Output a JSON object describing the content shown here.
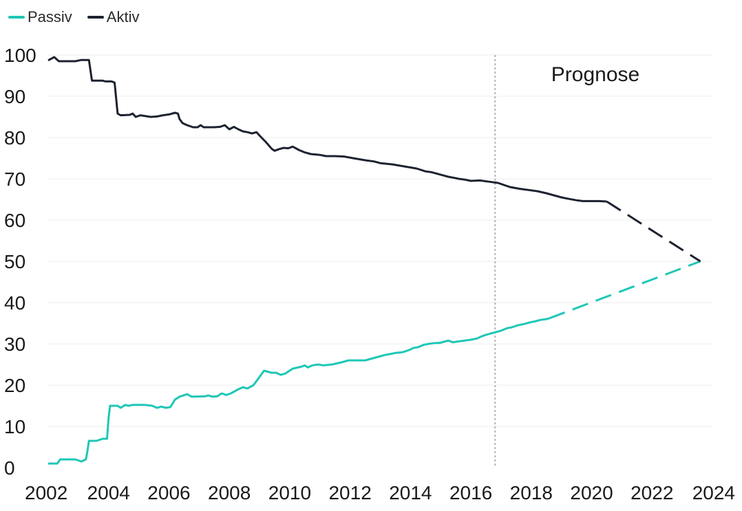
{
  "chart_data": {
    "type": "line",
    "title": "",
    "xlabel": "",
    "ylabel": "",
    "xlim": [
      2002,
      2024
    ],
    "ylim": [
      0,
      100
    ],
    "x_ticks": [
      "2002",
      "2004",
      "2006",
      "2008",
      "2010",
      "2012",
      "2014",
      "2016",
      "2018",
      "2020",
      "2022",
      "2024"
    ],
    "y_ticks": [
      "0",
      "10",
      "20",
      "30",
      "40",
      "50",
      "60",
      "70",
      "80",
      "90",
      "100"
    ],
    "grid": "horizontal",
    "legend_position": "top-left",
    "forecast_start": 2016.8,
    "annotation": "Prognose",
    "series": [
      {
        "name": "Passiv",
        "color": "#1fc7b6",
        "points": [
          [
            2002.0,
            1
          ],
          [
            2002.3,
            1
          ],
          [
            2002.4,
            2
          ],
          [
            2002.9,
            2
          ],
          [
            2003.1,
            1.5
          ],
          [
            2003.25,
            2
          ],
          [
            2003.3,
            4
          ],
          [
            2003.35,
            6.5
          ],
          [
            2003.6,
            6.5
          ],
          [
            2003.8,
            7
          ],
          [
            2003.95,
            7
          ],
          [
            2004.0,
            12
          ],
          [
            2004.05,
            15
          ],
          [
            2004.3,
            15
          ],
          [
            2004.4,
            14.5
          ],
          [
            2004.55,
            15.2
          ],
          [
            2004.65,
            15
          ],
          [
            2004.8,
            15.2
          ],
          [
            2005.2,
            15.2
          ],
          [
            2005.45,
            15
          ],
          [
            2005.6,
            14.5
          ],
          [
            2005.75,
            14.8
          ],
          [
            2005.9,
            14.5
          ],
          [
            2006.05,
            14.7
          ],
          [
            2006.2,
            16.5
          ],
          [
            2006.35,
            17.2
          ],
          [
            2006.6,
            17.8
          ],
          [
            2006.75,
            17.2
          ],
          [
            2007.2,
            17.3
          ],
          [
            2007.3,
            17.5
          ],
          [
            2007.45,
            17.2
          ],
          [
            2007.6,
            17.3
          ],
          [
            2007.75,
            18
          ],
          [
            2007.9,
            17.6
          ],
          [
            2008.05,
            18
          ],
          [
            2008.3,
            19
          ],
          [
            2008.45,
            19.5
          ],
          [
            2008.6,
            19.2
          ],
          [
            2008.8,
            20
          ],
          [
            2008.95,
            21.5
          ],
          [
            2009.15,
            23.5
          ],
          [
            2009.4,
            23
          ],
          [
            2009.55,
            23
          ],
          [
            2009.7,
            22.5
          ],
          [
            2009.85,
            22.8
          ],
          [
            2010.1,
            24
          ],
          [
            2010.4,
            24.5
          ],
          [
            2010.5,
            24.8
          ],
          [
            2010.6,
            24.3
          ],
          [
            2010.75,
            24.8
          ],
          [
            2010.95,
            25
          ],
          [
            2011.1,
            24.8
          ],
          [
            2011.4,
            25
          ],
          [
            2011.7,
            25.5
          ],
          [
            2011.95,
            26
          ],
          [
            2012.5,
            26
          ],
          [
            2013.0,
            27
          ],
          [
            2013.15,
            27.3
          ],
          [
            2013.3,
            27.5
          ],
          [
            2013.5,
            27.8
          ],
          [
            2013.75,
            28
          ],
          [
            2013.95,
            28.5
          ],
          [
            2014.1,
            29
          ],
          [
            2014.25,
            29.2
          ],
          [
            2014.45,
            29.8
          ],
          [
            2014.6,
            30
          ],
          [
            2014.8,
            30.2
          ],
          [
            2014.95,
            30.2
          ],
          [
            2015.1,
            30.5
          ],
          [
            2015.25,
            30.8
          ],
          [
            2015.4,
            30.4
          ],
          [
            2015.6,
            30.6
          ],
          [
            2015.8,
            30.8
          ],
          [
            2016.0,
            31
          ],
          [
            2016.2,
            31.3
          ],
          [
            2016.35,
            31.8
          ],
          [
            2016.5,
            32.2
          ],
          [
            2016.8,
            32.8
          ],
          [
            2017.0,
            33.2
          ],
          [
            2017.2,
            33.8
          ],
          [
            2017.35,
            34
          ],
          [
            2017.55,
            34.5
          ],
          [
            2017.75,
            34.8
          ],
          [
            2017.95,
            35.2
          ],
          [
            2018.15,
            35.5
          ],
          [
            2018.3,
            35.8
          ],
          [
            2018.5,
            36
          ],
          [
            2018.6,
            36.2
          ]
        ],
        "forecast": [
          [
            2018.6,
            36.2
          ],
          [
            2023.6,
            50
          ]
        ]
      },
      {
        "name": "Aktiv",
        "color": "#1d2230",
        "points": [
          [
            2002.0,
            98.7
          ],
          [
            2002.2,
            99.5
          ],
          [
            2002.35,
            98.5
          ],
          [
            2002.9,
            98.5
          ],
          [
            2003.1,
            98.8
          ],
          [
            2003.35,
            98.8
          ],
          [
            2003.45,
            93.8
          ],
          [
            2003.8,
            93.8
          ],
          [
            2003.9,
            93.6
          ],
          [
            2004.1,
            93.6
          ],
          [
            2004.2,
            93.3
          ],
          [
            2004.3,
            85.8
          ],
          [
            2004.4,
            85.4
          ],
          [
            2004.7,
            85.5
          ],
          [
            2004.8,
            85.8
          ],
          [
            2004.9,
            85
          ],
          [
            2005.05,
            85.4
          ],
          [
            2005.4,
            85
          ],
          [
            2005.6,
            85.1
          ],
          [
            2005.8,
            85.4
          ],
          [
            2006.0,
            85.6
          ],
          [
            2006.2,
            86.0
          ],
          [
            2006.3,
            85.8
          ],
          [
            2006.35,
            84.5
          ],
          [
            2006.45,
            83.5
          ],
          [
            2006.6,
            83.0
          ],
          [
            2006.8,
            82.5
          ],
          [
            2006.95,
            82.5
          ],
          [
            2007.05,
            83
          ],
          [
            2007.15,
            82.5
          ],
          [
            2007.5,
            82.5
          ],
          [
            2007.7,
            82.6
          ],
          [
            2007.85,
            83
          ],
          [
            2008.0,
            82
          ],
          [
            2008.15,
            82.6
          ],
          [
            2008.3,
            82
          ],
          [
            2008.45,
            81.5
          ],
          [
            2008.6,
            81.3
          ],
          [
            2008.75,
            81
          ],
          [
            2008.9,
            81.3
          ],
          [
            2009.0,
            80.5
          ],
          [
            2009.2,
            79
          ],
          [
            2009.4,
            77.3
          ],
          [
            2009.5,
            76.8
          ],
          [
            2009.65,
            77.2
          ],
          [
            2009.8,
            77.5
          ],
          [
            2009.95,
            77.4
          ],
          [
            2010.1,
            77.8
          ],
          [
            2010.3,
            77
          ],
          [
            2010.5,
            76.4
          ],
          [
            2010.7,
            76
          ],
          [
            2011.0,
            75.8
          ],
          [
            2011.2,
            75.5
          ],
          [
            2011.5,
            75.5
          ],
          [
            2011.8,
            75.4
          ],
          [
            2012.1,
            75
          ],
          [
            2012.5,
            74.5
          ],
          [
            2012.8,
            74.2
          ],
          [
            2013.0,
            73.8
          ],
          [
            2013.4,
            73.5
          ],
          [
            2013.8,
            73
          ],
          [
            2014.2,
            72.5
          ],
          [
            2014.5,
            71.8
          ],
          [
            2014.7,
            71.6
          ],
          [
            2014.9,
            71.2
          ],
          [
            2015.1,
            70.8
          ],
          [
            2015.25,
            70.5
          ],
          [
            2015.4,
            70.3
          ],
          [
            2015.6,
            70.0
          ],
          [
            2015.8,
            69.8
          ],
          [
            2016.0,
            69.5
          ],
          [
            2016.3,
            69.6
          ],
          [
            2016.6,
            69.3
          ],
          [
            2016.9,
            69
          ],
          [
            2017.1,
            68.5
          ],
          [
            2017.3,
            68
          ],
          [
            2017.6,
            67.6
          ],
          [
            2017.9,
            67.3
          ],
          [
            2018.2,
            67
          ],
          [
            2018.5,
            66.5
          ],
          [
            2018.75,
            66
          ],
          [
            2019.0,
            65.5
          ],
          [
            2019.2,
            65.2
          ],
          [
            2019.5,
            64.8
          ],
          [
            2019.7,
            64.6
          ],
          [
            2019.95,
            64.6
          ],
          [
            2020.25,
            64.6
          ],
          [
            2020.5,
            64.5
          ]
        ],
        "forecast": [
          [
            2020.5,
            64.5
          ],
          [
            2023.6,
            50
          ]
        ]
      }
    ]
  }
}
